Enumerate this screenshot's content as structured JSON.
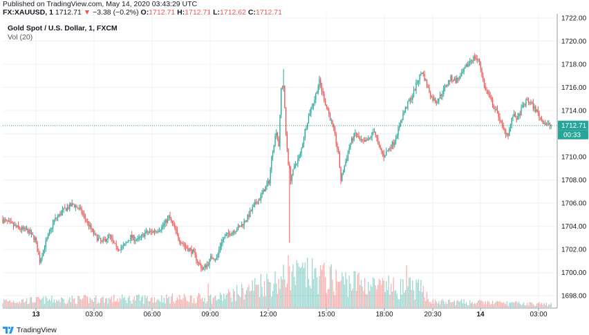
{
  "header": {
    "published": "Published on TradingView.com, May 14, 2020 03:43:29 UTC",
    "symbol": "FX:XAUUSD, 1",
    "last": "1712.71",
    "change_arrow": "▼",
    "change": "−3.38 (−0.2%)",
    "o_label": "O:",
    "o_value": "1712.71",
    "h_label": "H:",
    "h_value": "1712.71",
    "l_label": "L:",
    "l_value": "1712.62",
    "c_label": "C:",
    "c_value": "1712.71"
  },
  "chart_title": "Gold Spot / U.S. Dollar, 1, FXCM",
  "volume_legend": "Vol (20)",
  "footer": {
    "brand": "TradingView",
    "logo_icon": "tradingview-logo-icon"
  },
  "colors": {
    "up": "#26a69a",
    "down": "#ef5350",
    "grid": "#eef0f3",
    "price_line": "#26a69a",
    "price_label": "#26a69a"
  },
  "chart_data": {
    "type": "candlestick",
    "price_axis": {
      "ylim": [
        1697.0,
        1722.0
      ],
      "ticks": [
        "1722.00",
        "1720.00",
        "1718.00",
        "1716.00",
        "1714.00",
        "1712.00",
        "1710.00",
        "1708.00",
        "1706.00",
        "1704.00",
        "1702.00",
        "1700.00",
        "1698.00"
      ]
    },
    "time_axis": {
      "ticks": [
        "13",
        "03:00",
        "06:00",
        "09:00",
        "12:00",
        "15:00",
        "18:00",
        "20:30",
        "14",
        "03:00"
      ],
      "bold_ticks": [
        "13",
        "14"
      ]
    },
    "last_price": "1712.71",
    "countdown": "00:33",
    "price_path": [
      [
        0,
        1704.6
      ],
      [
        15,
        1703.8
      ],
      [
        22,
        1703.6
      ],
      [
        28,
        1702.9
      ],
      [
        32,
        1701.0
      ],
      [
        36,
        1702.3
      ],
      [
        44,
        1704.5
      ],
      [
        52,
        1705.4
      ],
      [
        60,
        1705.9
      ],
      [
        66,
        1705.4
      ],
      [
        72,
        1704.3
      ],
      [
        78,
        1703.2
      ],
      [
        84,
        1702.6
      ],
      [
        90,
        1703.2
      ],
      [
        96,
        1702.1
      ],
      [
        102,
        1702.2
      ],
      [
        108,
        1703.1
      ],
      [
        114,
        1702.8
      ],
      [
        120,
        1703.4
      ],
      [
        128,
        1703.6
      ],
      [
        134,
        1703.9
      ],
      [
        140,
        1704.8
      ],
      [
        144,
        1704.0
      ],
      [
        148,
        1703.0
      ],
      [
        154,
        1702.2
      ],
      [
        160,
        1701.8
      ],
      [
        164,
        1701.0
      ],
      [
        168,
        1700.3
      ],
      [
        172,
        1700.7
      ],
      [
        176,
        1701.4
      ],
      [
        180,
        1701.2
      ],
      [
        184,
        1702.7
      ],
      [
        188,
        1703.2
      ],
      [
        194,
        1703.6
      ],
      [
        200,
        1704.0
      ],
      [
        206,
        1704.8
      ],
      [
        212,
        1705.9
      ],
      [
        216,
        1706.4
      ],
      [
        220,
        1707.2
      ],
      [
        224,
        1707.9
      ],
      [
        226,
        1709.9
      ],
      [
        228,
        1711.2
      ],
      [
        230,
        1712.3
      ],
      [
        232,
        1711.0
      ],
      [
        234,
        1715.9
      ],
      [
        236,
        1716.2
      ],
      [
        238,
        1712.0
      ],
      [
        240,
        1709.5
      ],
      [
        242,
        1708.1
      ],
      [
        246,
        1709.4
      ],
      [
        250,
        1710.2
      ],
      [
        254,
        1712.3
      ],
      [
        258,
        1713.9
      ],
      [
        262,
        1715.0
      ],
      [
        266,
        1716.5
      ],
      [
        270,
        1715.0
      ],
      [
        274,
        1713.7
      ],
      [
        278,
        1712.3
      ],
      [
        282,
        1710.2
      ],
      [
        284,
        1708.0
      ],
      [
        288,
        1709.6
      ],
      [
        292,
        1711.2
      ],
      [
        296,
        1712.0
      ],
      [
        300,
        1711.4
      ],
      [
        304,
        1711.2
      ],
      [
        308,
        1711.6
      ],
      [
        312,
        1712.3
      ],
      [
        316,
        1710.8
      ],
      [
        320,
        1710.1
      ],
      [
        324,
        1710.7
      ],
      [
        328,
        1711.2
      ],
      [
        332,
        1712.3
      ],
      [
        336,
        1713.7
      ],
      [
        340,
        1714.6
      ],
      [
        344,
        1715.3
      ],
      [
        348,
        1716.5
      ],
      [
        352,
        1717.4
      ],
      [
        356,
        1716.2
      ],
      [
        360,
        1715.1
      ],
      [
        364,
        1714.8
      ],
      [
        368,
        1715.4
      ],
      [
        372,
        1716.2
      ],
      [
        376,
        1716.8
      ],
      [
        380,
        1716.6
      ],
      [
        384,
        1716.9
      ],
      [
        388,
        1717.6
      ],
      [
        392,
        1718.3
      ],
      [
        396,
        1718.6
      ],
      [
        400,
        1718.2
      ],
      [
        404,
        1716.1
      ],
      [
        408,
        1715.2
      ],
      [
        412,
        1714.3
      ],
      [
        416,
        1713.6
      ],
      [
        420,
        1712.3
      ],
      [
        424,
        1712.0
      ],
      [
        428,
        1713.6
      ],
      [
        432,
        1713.3
      ],
      [
        436,
        1714.3
      ],
      [
        440,
        1714.9
      ],
      [
        444,
        1714.5
      ],
      [
        448,
        1713.9
      ],
      [
        452,
        1713.2
      ],
      [
        456,
        1712.8
      ],
      [
        460,
        1712.71
      ]
    ],
    "x_count": 460,
    "volume": {
      "ylim": [
        0,
        100
      ],
      "profile": [
        [
          0,
          10
        ],
        [
          40,
          12
        ],
        [
          120,
          14
        ],
        [
          180,
          15
        ],
        [
          205,
          28
        ],
        [
          215,
          38
        ],
        [
          230,
          42
        ],
        [
          240,
          48
        ],
        [
          250,
          52
        ],
        [
          265,
          50
        ],
        [
          280,
          42
        ],
        [
          300,
          40
        ],
        [
          320,
          30
        ],
        [
          340,
          32
        ],
        [
          352,
          28
        ],
        [
          360,
          9
        ],
        [
          400,
          8
        ],
        [
          420,
          7
        ],
        [
          440,
          6
        ],
        [
          460,
          5
        ]
      ],
      "spikes": [
        [
          239,
          72
        ],
        [
          172,
          33
        ],
        [
          323,
          44
        ],
        [
          338,
          58
        ],
        [
          253,
          62
        ]
      ]
    },
    "annotations": {
      "low_spike": [
        240,
        1702.6
      ],
      "high_spike": [
        235,
        1717.6
      ]
    }
  }
}
